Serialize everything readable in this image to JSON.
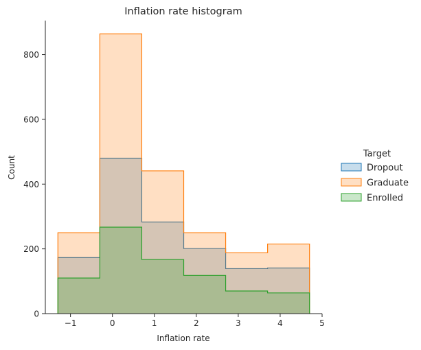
{
  "chart_data": {
    "type": "histogram",
    "title": "Inflation rate histogram",
    "xlabel": "Inflation rate",
    "ylabel": "Count",
    "xlim": [
      -1.6,
      5
    ],
    "ylim": [
      0,
      905
    ],
    "xticks": [
      -1,
      0,
      1,
      2,
      3,
      4,
      5
    ],
    "yticks": [
      0,
      200,
      400,
      600,
      800
    ],
    "bin_edges": [
      -1.3,
      -0.3,
      0.7,
      1.7,
      2.7,
      3.7,
      4.7
    ],
    "series": [
      {
        "name": "Dropout",
        "values": [
          173,
          480,
          283,
          201,
          139,
          141
        ],
        "color": "#1f77b4"
      },
      {
        "name": "Graduate",
        "values": [
          250,
          864,
          441,
          250,
          188,
          215
        ],
        "color": "#ff7f0e"
      },
      {
        "name": "Enrolled",
        "values": [
          110,
          267,
          167,
          118,
          70,
          64
        ],
        "color": "#2ca02c"
      }
    ],
    "legend": {
      "title": "Target",
      "placement": "right"
    },
    "grid": false
  }
}
